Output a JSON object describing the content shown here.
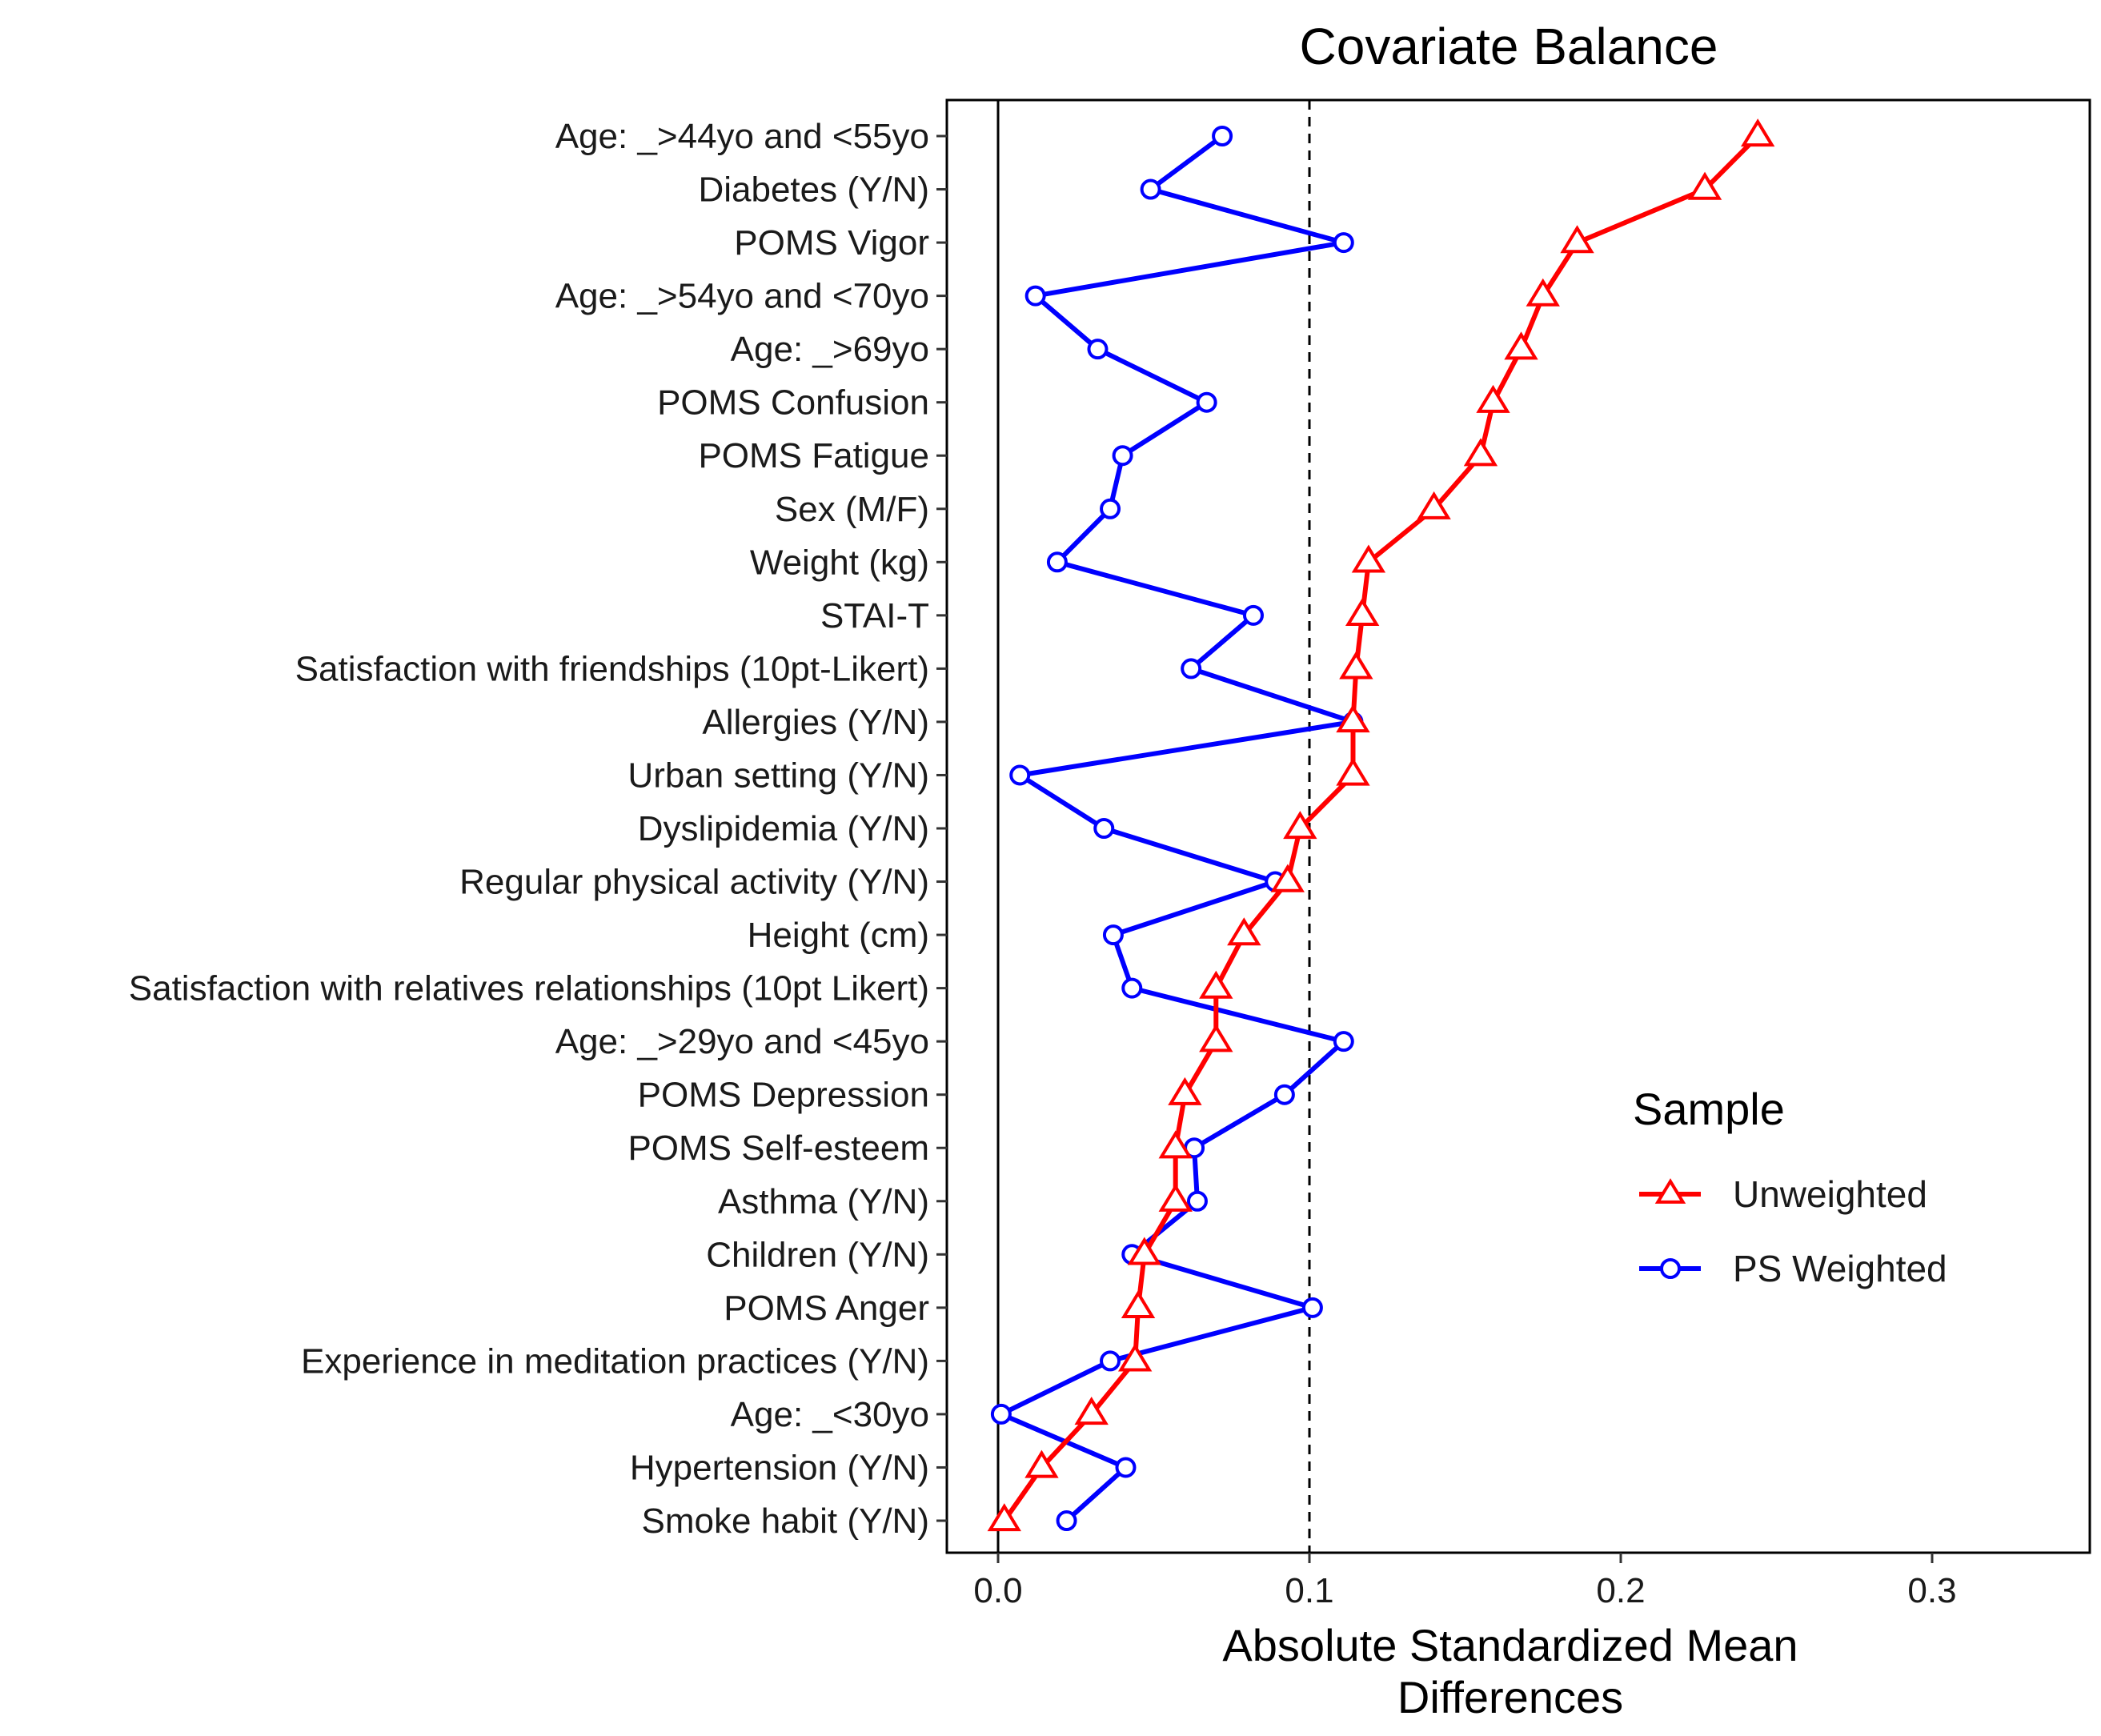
{
  "chart_data": {
    "type": "line",
    "title": "Covariate Balance",
    "xlabel": [
      "Absolute Standardized Mean",
      "Differences"
    ],
    "ylabel": "",
    "xlim": [
      -0.017,
      0.35
    ],
    "xticks": [
      0.0,
      0.1,
      0.2,
      0.3
    ],
    "xtick_labels": [
      "0.0",
      "0.1",
      "0.2",
      "0.3"
    ],
    "reference_lines": [
      {
        "x": 0.0,
        "style": "solid"
      },
      {
        "x": 0.1,
        "style": "dashed"
      }
    ],
    "categories": [
      "Age: _>44yo and <55yo",
      "Diabetes (Y/N)",
      "POMS Vigor",
      "Age: _>54yo and <70yo",
      "Age: _>69yo",
      "POMS Confusion",
      "POMS Fatigue",
      "Sex (M/F)",
      "Weight (kg)",
      "STAI-T",
      "Satisfaction with friendships (10pt-Likert)",
      "Allergies (Y/N)",
      "Urban setting (Y/N)",
      "Dyslipidemia (Y/N)",
      "Regular physical activity (Y/N)",
      "Height (cm)",
      "Satisfaction with relatives relationships (10pt Likert)",
      "Age: _>29yo and <45yo",
      "POMS Depression",
      "POMS Self-esteem",
      "Asthma (Y/N)",
      "Children (Y/N)",
      "POMS Anger",
      "Experience in meditation practices (Y/N)",
      "Age: _<30yo",
      "Hypertension (Y/N)",
      "Smoke habit (Y/N)"
    ],
    "series": [
      {
        "name": "Unweighted",
        "color": "#ff0000",
        "marker": "triangle",
        "values": [
          0.244,
          0.227,
          0.186,
          0.175,
          0.168,
          0.159,
          0.155,
          0.14,
          0.119,
          0.117,
          0.115,
          0.114,
          0.114,
          0.097,
          0.093,
          0.079,
          0.07,
          0.07,
          0.06,
          0.057,
          0.057,
          0.047,
          0.045,
          0.044,
          0.03,
          0.014,
          0.002
        ]
      },
      {
        "name": "PS Weighted",
        "color": "#0000ff",
        "marker": "circle",
        "values": [
          0.072,
          0.049,
          0.111,
          0.012,
          0.032,
          0.067,
          0.04,
          0.036,
          0.019,
          0.082,
          0.062,
          0.114,
          0.007,
          0.034,
          0.089,
          0.037,
          0.043,
          0.111,
          0.092,
          0.063,
          0.064,
          0.043,
          0.101,
          0.036,
          0.001,
          0.041,
          0.022
        ]
      }
    ],
    "legend": {
      "title": "Sample",
      "position": "right",
      "entries": [
        "Unweighted",
        "PS Weighted"
      ]
    }
  }
}
